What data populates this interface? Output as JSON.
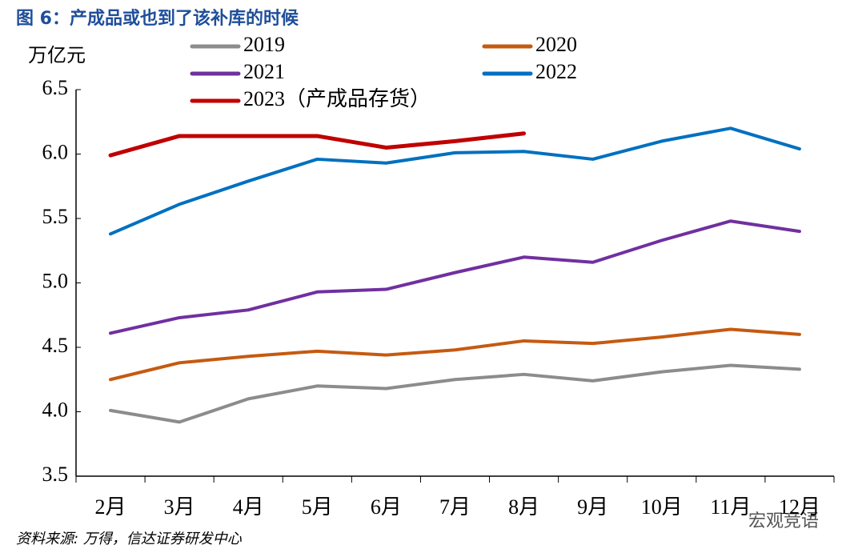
{
  "chart_data": {
    "type": "line",
    "title": "图 6：产成品或也到了该补库的时候",
    "y_label": "万亿元",
    "source": "资料来源: 万得，信达证券研发中心",
    "watermark": "宏观竞语",
    "categories": [
      "2月",
      "3月",
      "4月",
      "5月",
      "6月",
      "7月",
      "8月",
      "9月",
      "10月",
      "11月",
      "12月"
    ],
    "series": [
      {
        "name": "2019",
        "color": "#8c8c8c",
        "values": [
          4.01,
          3.92,
          4.1,
          4.2,
          4.18,
          4.25,
          4.29,
          4.24,
          4.31,
          4.36,
          4.33
        ]
      },
      {
        "name": "2020",
        "color": "#c55a11",
        "values": [
          4.25,
          4.38,
          4.43,
          4.47,
          4.44,
          4.48,
          4.55,
          4.53,
          4.58,
          4.64,
          4.6
        ]
      },
      {
        "name": "2021",
        "color": "#7030a0",
        "values": [
          4.61,
          4.73,
          4.79,
          4.93,
          4.95,
          5.08,
          5.2,
          5.16,
          5.33,
          5.48,
          5.4
        ]
      },
      {
        "name": "2022",
        "color": "#0070c0",
        "values": [
          5.38,
          5.61,
          5.79,
          5.96,
          5.93,
          6.01,
          6.02,
          5.96,
          6.1,
          6.2,
          6.04
        ]
      },
      {
        "name": "2023（产成品存货）",
        "color": "#c00000",
        "values": [
          5.99,
          6.14,
          6.14,
          6.14,
          6.05,
          6.1,
          6.16,
          null,
          null,
          null,
          null
        ]
      }
    ],
    "ylim": [
      3.5,
      6.5
    ],
    "yticks": [
      3.5,
      {
        "value": 4,
        "label": "4.0"
      },
      4.5,
      {
        "value": 5,
        "label": "5.0"
      },
      5.5,
      {
        "value": 6,
        "label": "6.0"
      },
      6.5
    ],
    "grid": false
  }
}
